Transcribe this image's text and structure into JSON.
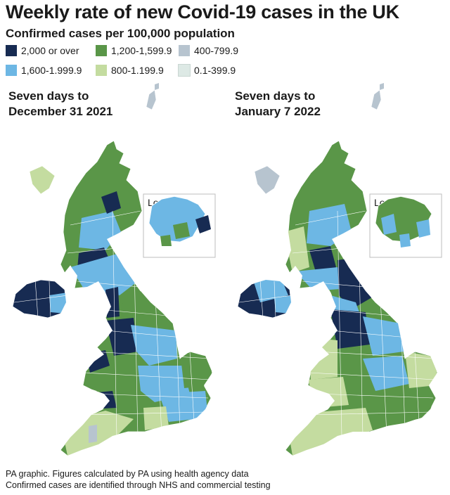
{
  "title": "Weekly rate of new Covid-19 cases in the UK",
  "subtitle": "Confirmed cases per 100,000 population",
  "legend": {
    "items": [
      {
        "label": "2,000 or over",
        "color": "#172b52"
      },
      {
        "label": "1,200-1,599.9",
        "color": "#5a9648"
      },
      {
        "label": "400-799.9",
        "color": "#b7c4cf"
      },
      {
        "label": "1,600-1.999.9",
        "color": "#6db7e4"
      },
      {
        "label": "800-1.199.9",
        "color": "#c4dca0"
      },
      {
        "label": "0.1-399.9",
        "color": "#dde9e5"
      }
    ]
  },
  "maps": {
    "left": {
      "line1": "Seven days to",
      "line2": "December 31 2021",
      "inset_label": "London"
    },
    "right": {
      "line1": "Seven days to",
      "line2": "January 7 2022",
      "inset_label": "London"
    }
  },
  "footer": {
    "line1": "PA graphic. Figures calculated by PA using health agency data",
    "line2": "Confirmed cases are identified through NHS and commercial testing"
  }
}
